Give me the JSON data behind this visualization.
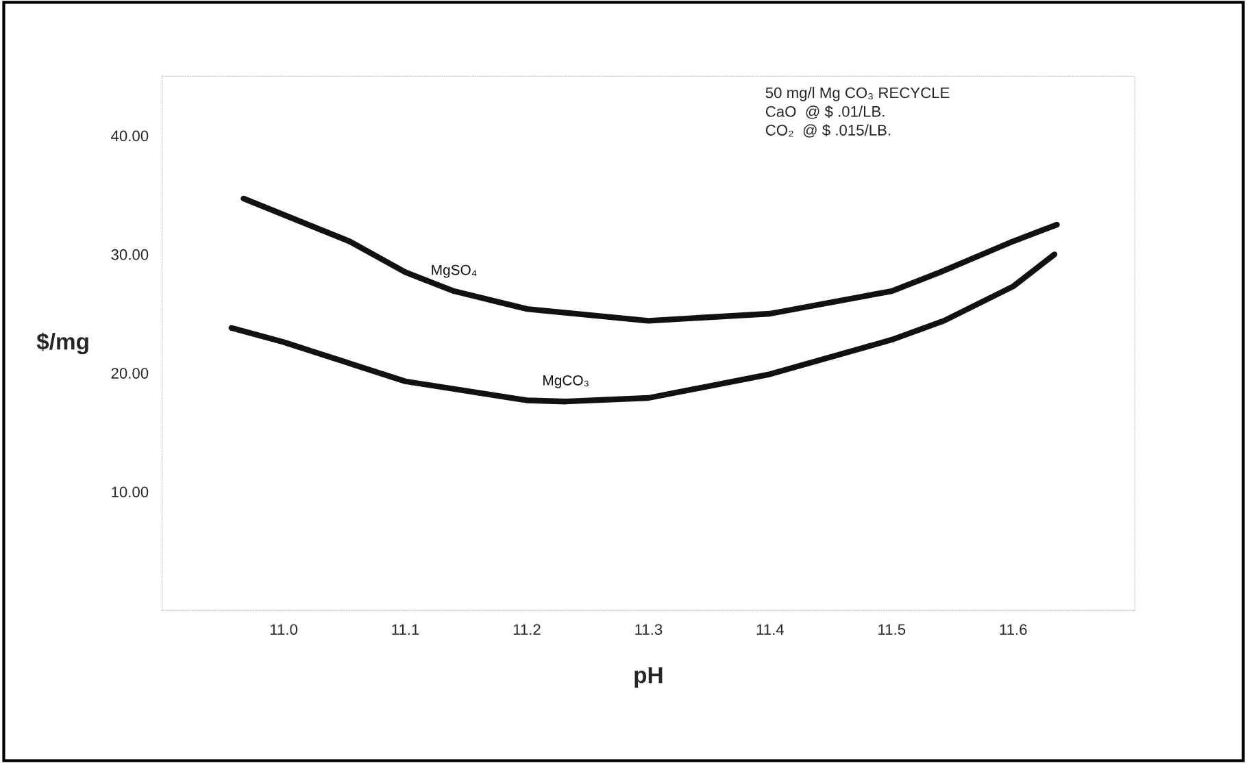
{
  "chart_data": {
    "type": "line",
    "xlabel": "pH",
    "ylabel": "$/mg",
    "annotations": [
      "50 mg/l Mg CO₃ RECYCLE",
      "CaO  @ $ .01/LB.",
      "CO₂  @ $ .015/LB."
    ],
    "series": [
      {
        "name": "MgSO₄",
        "color": "#111111",
        "x": [
          10.967,
          11.054,
          11.1,
          11.14,
          11.2,
          11.3,
          11.4,
          11.5,
          11.54,
          11.6,
          11.636
        ],
        "values": [
          34.7,
          31.1,
          28.5,
          26.9,
          25.4,
          24.4,
          25.0,
          26.9,
          28.5,
          31.1,
          32.5
        ]
      },
      {
        "name": "MgCO₃",
        "color": "#111111",
        "x": [
          10.957,
          11.0,
          11.1,
          11.2,
          11.232,
          11.3,
          11.4,
          11.5,
          11.543,
          11.6,
          11.634
        ],
        "values": [
          23.8,
          22.6,
          19.3,
          17.7,
          17.6,
          17.9,
          19.9,
          22.8,
          24.4,
          27.3,
          30.0
        ]
      }
    ],
    "xticks": [
      {
        "value": 11.0,
        "label": "11.0"
      },
      {
        "value": 11.1,
        "label": "11.1"
      },
      {
        "value": 11.2,
        "label": "11.2"
      },
      {
        "value": 11.3,
        "label": "11.3"
      },
      {
        "value": 11.4,
        "label": "11.4"
      },
      {
        "value": 11.5,
        "label": "11.5"
      },
      {
        "value": 11.6,
        "label": "11.6"
      }
    ],
    "yticks": [
      {
        "value": 10,
        "label": "10.00"
      },
      {
        "value": 20,
        "label": "20.00"
      },
      {
        "value": 30,
        "label": "30.00"
      },
      {
        "value": 40,
        "label": "40.00"
      }
    ],
    "xlim": [
      10.9,
      11.7
    ],
    "ylim": [
      0,
      45
    ],
    "grid": false,
    "legend": false,
    "marker": "none",
    "line_style": "solid"
  }
}
